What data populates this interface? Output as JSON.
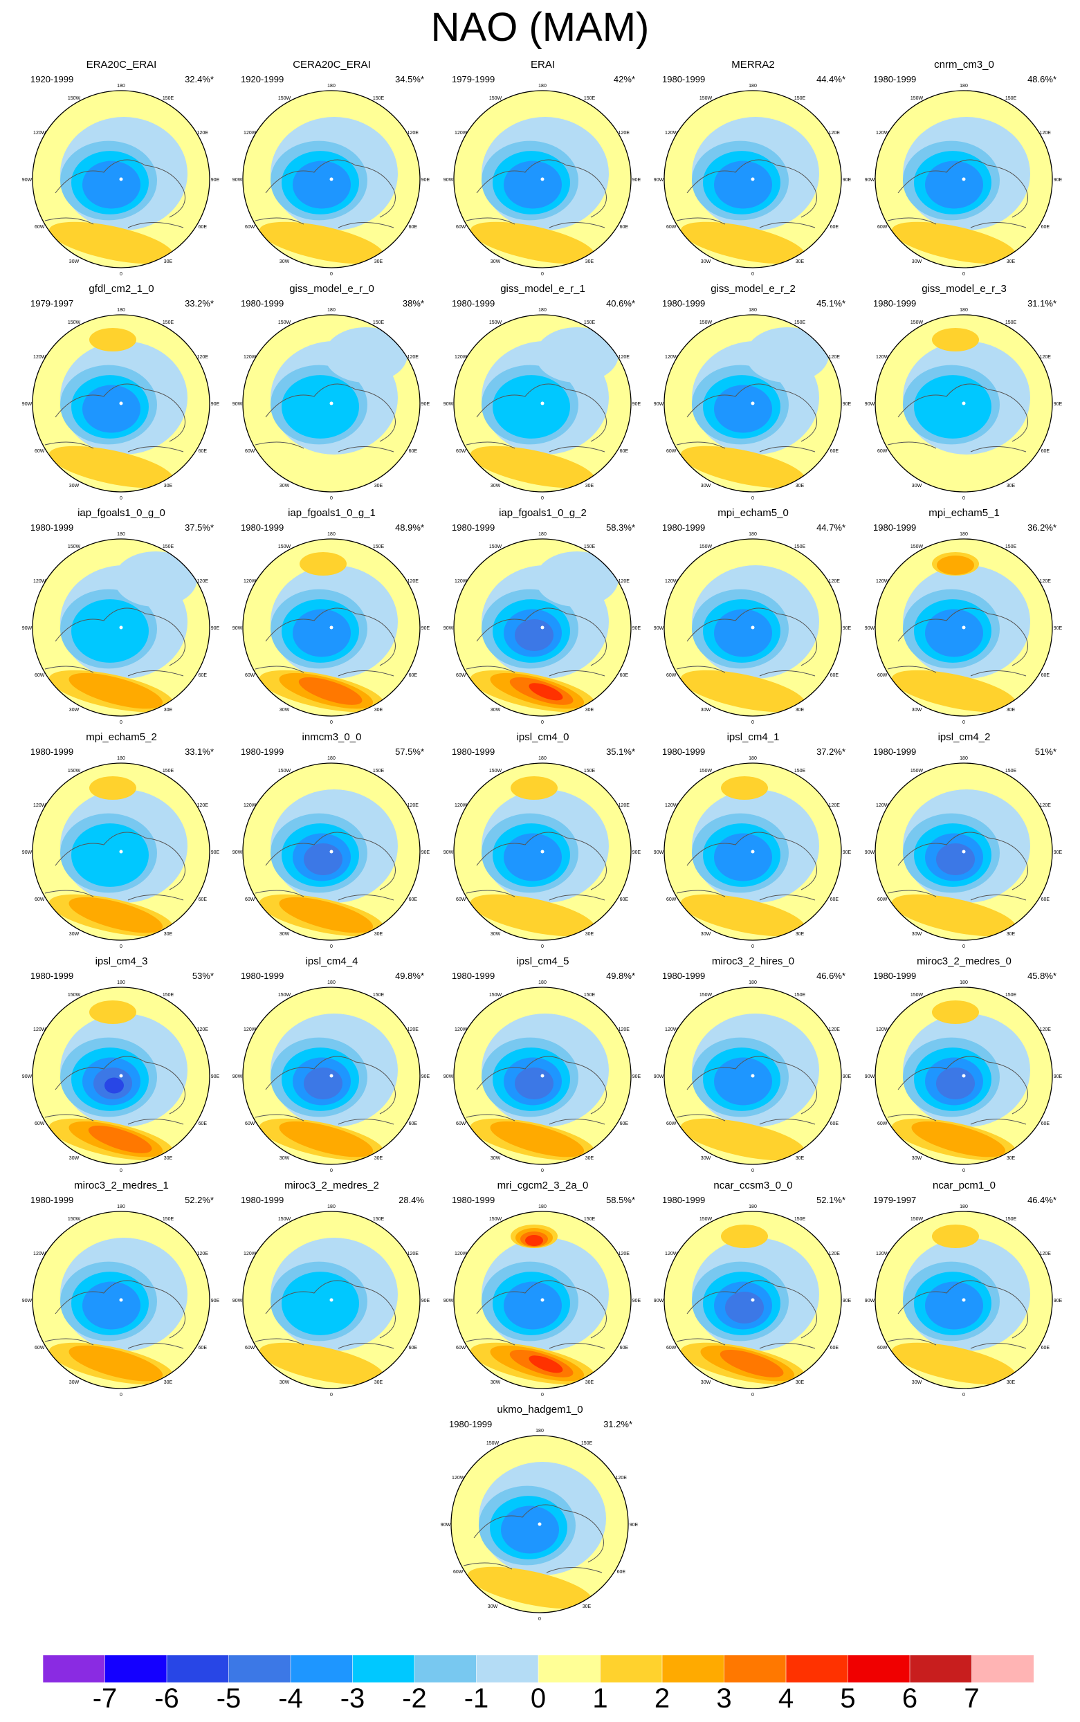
{
  "figure": {
    "title": "NAO (MAM)"
  },
  "chart_data": {
    "type": "polar-map-grid",
    "title": "NAO (MAM)",
    "projection": "north polar stereographic",
    "longitude_labels": [
      "180",
      "150W",
      "150E",
      "120W",
      "120E",
      "90W",
      "90E",
      "60W",
      "60E",
      "30W",
      "30E",
      "0"
    ],
    "panels": [
      {
        "name": "ERA20C_ERAI",
        "period": "1920-1999",
        "variance": "32.4%*",
        "low_strength": 4,
        "atlantic_high": 2,
        "pacific_high": 1
      },
      {
        "name": "CERA20C_ERAI",
        "period": "1920-1999",
        "variance": "34.5%*",
        "low_strength": 4,
        "atlantic_high": 2,
        "pacific_high": 1
      },
      {
        "name": "ERAI",
        "period": "1979-1999",
        "variance": "42%*",
        "low_strength": 4,
        "atlantic_high": 2,
        "pacific_high": 1
      },
      {
        "name": "MERRA2",
        "period": "1980-1999",
        "variance": "44.4%*",
        "low_strength": 4,
        "atlantic_high": 2,
        "pacific_high": 1
      },
      {
        "name": "cnrm_cm3_0",
        "period": "1980-1999",
        "variance": "48.6%*",
        "low_strength": 4,
        "atlantic_high": 2,
        "pacific_high": 1
      },
      {
        "name": "gfdl_cm2_1_0",
        "period": "1979-1997",
        "variance": "33.2%*",
        "low_strength": 4,
        "atlantic_high": 2,
        "pacific_high": 2
      },
      {
        "name": "giss_model_e_r_0",
        "period": "1980-1999",
        "variance": "38%*",
        "low_strength": 3,
        "atlantic_high": 1,
        "pacific_high": 0
      },
      {
        "name": "giss_model_e_r_1",
        "period": "1980-1999",
        "variance": "40.6%*",
        "low_strength": 3,
        "atlantic_high": 2,
        "pacific_high": 0
      },
      {
        "name": "giss_model_e_r_2",
        "period": "1980-1999",
        "variance": "45.1%*",
        "low_strength": 4,
        "atlantic_high": 2,
        "pacific_high": 0
      },
      {
        "name": "giss_model_e_r_3",
        "period": "1980-1999",
        "variance": "31.1%*",
        "low_strength": 3,
        "atlantic_high": 1,
        "pacific_high": 2
      },
      {
        "name": "iap_fgoals1_0_g_0",
        "period": "1980-1999",
        "variance": "37.5%*",
        "low_strength": 3,
        "atlantic_high": 3,
        "pacific_high": 0
      },
      {
        "name": "iap_fgoals1_0_g_1",
        "period": "1980-1999",
        "variance": "48.9%*",
        "low_strength": 4,
        "atlantic_high": 4,
        "pacific_high": 2
      },
      {
        "name": "iap_fgoals1_0_g_2",
        "period": "1980-1999",
        "variance": "58.3%*",
        "low_strength": 5,
        "atlantic_high": 5,
        "pacific_high": 0
      },
      {
        "name": "mpi_echam5_0",
        "period": "1980-1999",
        "variance": "44.7%*",
        "low_strength": 4,
        "atlantic_high": 2,
        "pacific_high": 1
      },
      {
        "name": "mpi_echam5_1",
        "period": "1980-1999",
        "variance": "36.2%*",
        "low_strength": 4,
        "atlantic_high": 2,
        "pacific_high": 3
      },
      {
        "name": "mpi_echam5_2",
        "period": "1980-1999",
        "variance": "33.1%*",
        "low_strength": 3,
        "atlantic_high": 3,
        "pacific_high": 2
      },
      {
        "name": "inmcm3_0_0",
        "period": "1980-1999",
        "variance": "57.5%*",
        "low_strength": 5,
        "atlantic_high": 3,
        "pacific_high": 1
      },
      {
        "name": "ipsl_cm4_0",
        "period": "1980-1999",
        "variance": "35.1%*",
        "low_strength": 4,
        "atlantic_high": 2,
        "pacific_high": 2
      },
      {
        "name": "ipsl_cm4_1",
        "period": "1980-1999",
        "variance": "37.2%*",
        "low_strength": 4,
        "atlantic_high": 2,
        "pacific_high": 2
      },
      {
        "name": "ipsl_cm4_2",
        "period": "1980-1999",
        "variance": "51%*",
        "low_strength": 5,
        "atlantic_high": 2,
        "pacific_high": 1
      },
      {
        "name": "ipsl_cm4_3",
        "period": "1980-1999",
        "variance": "53%*",
        "low_strength": 6,
        "atlantic_high": 4,
        "pacific_high": 2
      },
      {
        "name": "ipsl_cm4_4",
        "period": "1980-1999",
        "variance": "49.8%*",
        "low_strength": 5,
        "atlantic_high": 3,
        "pacific_high": 1
      },
      {
        "name": "ipsl_cm4_5",
        "period": "1980-1999",
        "variance": "49.8%*",
        "low_strength": 5,
        "atlantic_high": 3,
        "pacific_high": 1
      },
      {
        "name": "miroc3_2_hires_0",
        "period": "1980-1999",
        "variance": "46.6%*",
        "low_strength": 4,
        "atlantic_high": 2,
        "pacific_high": 1
      },
      {
        "name": "miroc3_2_medres_0",
        "period": "1980-1999",
        "variance": "45.8%*",
        "low_strength": 5,
        "atlantic_high": 3,
        "pacific_high": 2
      },
      {
        "name": "miroc3_2_medres_1",
        "period": "1980-1999",
        "variance": "52.2%*",
        "low_strength": 4,
        "atlantic_high": 3,
        "pacific_high": 1
      },
      {
        "name": "miroc3_2_medres_2",
        "period": "1980-1999",
        "variance": "28.4%",
        "low_strength": 3,
        "atlantic_high": 2,
        "pacific_high": 1
      },
      {
        "name": "mri_cgcm2_3_2a_0",
        "period": "1980-1999",
        "variance": "58.5%*",
        "low_strength": 4,
        "atlantic_high": 5,
        "pacific_high": 5
      },
      {
        "name": "ncar_ccsm3_0_0",
        "period": "1980-1999",
        "variance": "52.1%*",
        "low_strength": 5,
        "atlantic_high": 4,
        "pacific_high": 2
      },
      {
        "name": "ncar_pcm1_0",
        "period": "1979-1997",
        "variance": "46.4%*",
        "low_strength": 4,
        "atlantic_high": 2,
        "pacific_high": 2
      },
      {
        "name": "ukmo_hadgem1_0",
        "period": "1980-1999",
        "variance": "31.2%*",
        "low_strength": 4,
        "atlantic_high": 2,
        "pacific_high": 1
      }
    ],
    "colorbar": {
      "labels": [
        "-7",
        "-6",
        "-5",
        "-4",
        "-3",
        "-2",
        "-1",
        "0",
        "1",
        "2",
        "3",
        "4",
        "5",
        "6",
        "7"
      ],
      "colors": [
        "#8a2be2",
        "#1400ff",
        "#2846e6",
        "#3c78e6",
        "#1e96ff",
        "#00c8ff",
        "#78c8f0",
        "#b4dcf5",
        "#ffff96",
        "#ffd22d",
        "#ffaa00",
        "#ff7800",
        "#ff3200",
        "#f00000",
        "#c81e1e",
        "#ffb4b4"
      ]
    }
  }
}
